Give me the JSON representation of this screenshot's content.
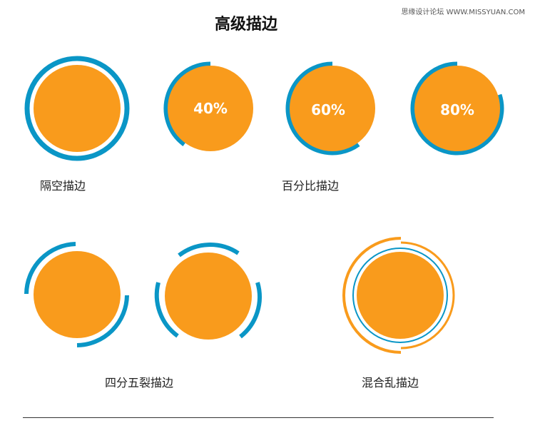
{
  "watermark": "思缘设计论坛 WWW.MISSYUAN.COM",
  "title": "高级描边",
  "colors": {
    "fill": "#F99B1C",
    "stroke": "#0A96C6",
    "gap": "#FFFFFF"
  },
  "sections": {
    "hollow": {
      "label": "隔空描边"
    },
    "percent": {
      "label": "百分比描边",
      "items": [
        {
          "value": 0.4,
          "text": "40%"
        },
        {
          "value": 0.6,
          "text": "60%"
        },
        {
          "value": 0.8,
          "text": "80%"
        }
      ]
    },
    "split": {
      "label": "四分五裂描边"
    },
    "chaos": {
      "label": "混合乱描边"
    }
  }
}
